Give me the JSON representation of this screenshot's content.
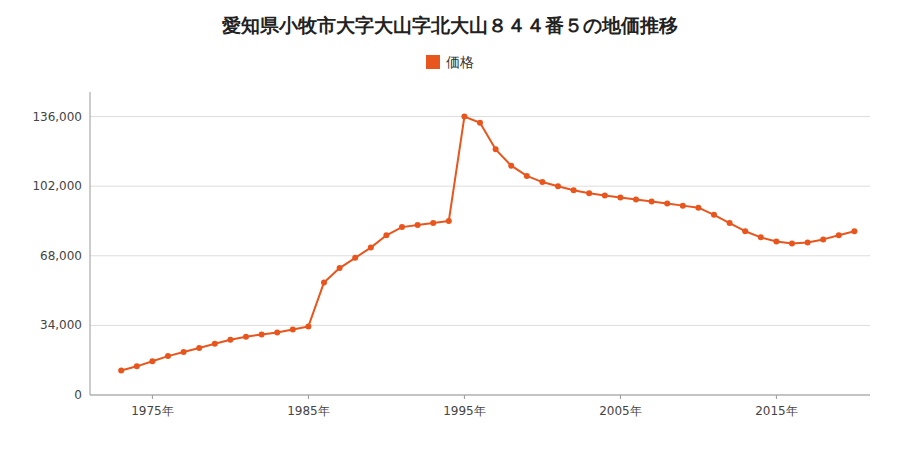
{
  "chart_data": {
    "type": "line",
    "title": "愛知県小牧市大字大山字北大山８４４番５の地価推移",
    "x": [
      1973,
      1974,
      1975,
      1976,
      1977,
      1978,
      1979,
      1980,
      1981,
      1982,
      1983,
      1984,
      1985,
      1986,
      1987,
      1988,
      1989,
      1990,
      1991,
      1992,
      1993,
      1994,
      1995,
      1996,
      1997,
      1998,
      1999,
      2000,
      2001,
      2002,
      2003,
      2004,
      2005,
      2006,
      2007,
      2008,
      2009,
      2010,
      2011,
      2012,
      2013,
      2014,
      2015,
      2016,
      2017,
      2018,
      2019,
      2020
    ],
    "series": [
      {
        "name": "価格",
        "color": "#e8561e",
        "marker": "circle",
        "line_style": "solid",
        "values": [
          12000,
          14000,
          16500,
          19000,
          21000,
          23000,
          25000,
          27000,
          28500,
          29500,
          30500,
          32000,
          33500,
          55000,
          62000,
          67000,
          72000,
          78000,
          82000,
          83000,
          84000,
          85000,
          136000,
          133000,
          120000,
          112000,
          107000,
          104000,
          102000,
          100000,
          98500,
          97500,
          96500,
          95500,
          94500,
          93500,
          92500,
          91500,
          88000,
          84000,
          80000,
          77000,
          75000,
          74000,
          74500,
          76000,
          78000,
          80000
        ]
      }
    ],
    "xlim": [
      1971,
      2021
    ],
    "xticks": [
      {
        "value": 1975,
        "label": "1975年"
      },
      {
        "value": 1985,
        "label": "1985年"
      },
      {
        "value": 1995,
        "label": "1995年"
      },
      {
        "value": 2005,
        "label": "2005年"
      },
      {
        "value": 2015,
        "label": "2015年"
      }
    ],
    "ylim": [
      0,
      148000
    ],
    "yticks": [
      0,
      {
        "value": 34000,
        "label": "34,000"
      },
      {
        "value": 68000,
        "label": "68,000"
      },
      {
        "value": 102000,
        "label": "102,000"
      },
      {
        "value": 136000,
        "label": "136,000"
      }
    ],
    "grid": true,
    "legend": "top"
  }
}
